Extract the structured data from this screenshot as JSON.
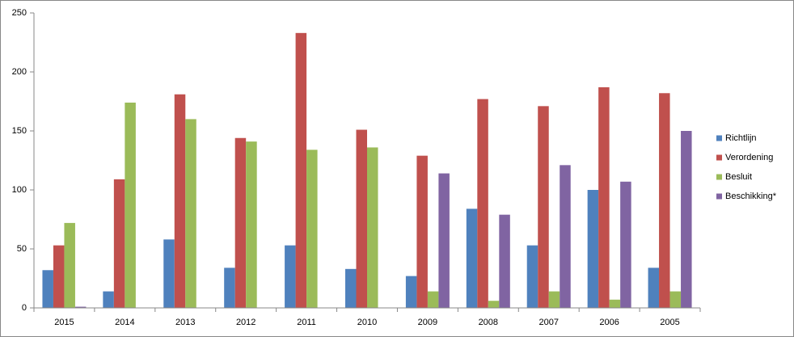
{
  "chart_data": {
    "type": "bar",
    "categories": [
      "2015",
      "2014",
      "2013",
      "2012",
      "2011",
      "2010",
      "2009",
      "2008",
      "2007",
      "2006",
      "2005"
    ],
    "series": [
      {
        "name": "Richtlijn",
        "color": "#4f81bd",
        "values": [
          32,
          14,
          58,
          34,
          53,
          33,
          27,
          84,
          53,
          100,
          34
        ]
      },
      {
        "name": "Verordening",
        "color": "#c0504d",
        "values": [
          53,
          109,
          181,
          144,
          233,
          151,
          129,
          177,
          171,
          187,
          182
        ]
      },
      {
        "name": "Besluit",
        "color": "#9bbb59",
        "values": [
          72,
          174,
          160,
          141,
          134,
          136,
          14,
          6,
          14,
          7,
          14
        ]
      },
      {
        "name": "Beschikking*",
        "color": "#8064a2",
        "values": [
          1,
          0,
          0,
          0,
          0,
          0,
          114,
          79,
          121,
          107,
          150
        ]
      }
    ],
    "ylim": [
      0,
      250
    ],
    "yticks": [
      0,
      50,
      100,
      150,
      200,
      250
    ],
    "grid": false,
    "legend": "right"
  }
}
